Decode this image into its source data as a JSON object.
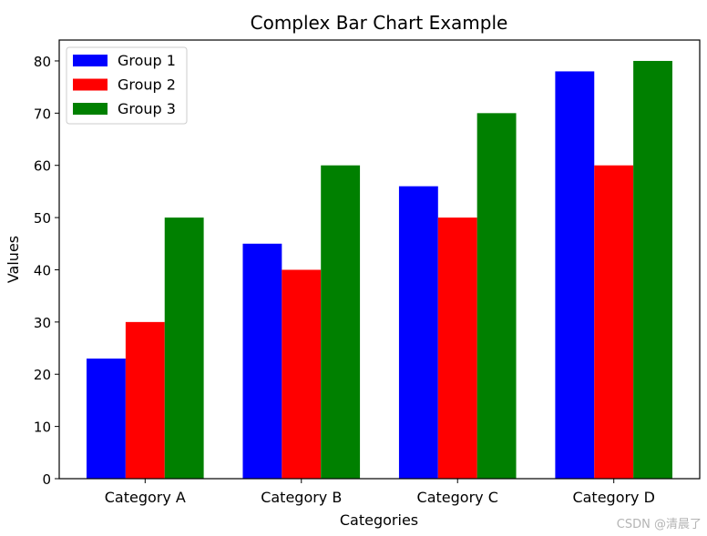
{
  "chart_data": {
    "type": "bar",
    "title": "Complex Bar Chart Example",
    "xlabel": "Categories",
    "ylabel": "Values",
    "categories": [
      "Category A",
      "Category B",
      "Category C",
      "Category D"
    ],
    "series": [
      {
        "name": "Group 1",
        "color": "#0000ff",
        "values": [
          23,
          45,
          56,
          78
        ]
      },
      {
        "name": "Group 2",
        "color": "#ff0000",
        "values": [
          30,
          40,
          50,
          60
        ]
      },
      {
        "name": "Group 3",
        "color": "#008000",
        "values": [
          50,
          60,
          70,
          80
        ]
      }
    ],
    "ylim": [
      0,
      84
    ],
    "yticks": [
      0,
      10,
      20,
      30,
      40,
      50,
      60,
      70,
      80
    ],
    "grid": false,
    "legend_position": "top-left"
  },
  "watermark": "CSDN @清晨了"
}
